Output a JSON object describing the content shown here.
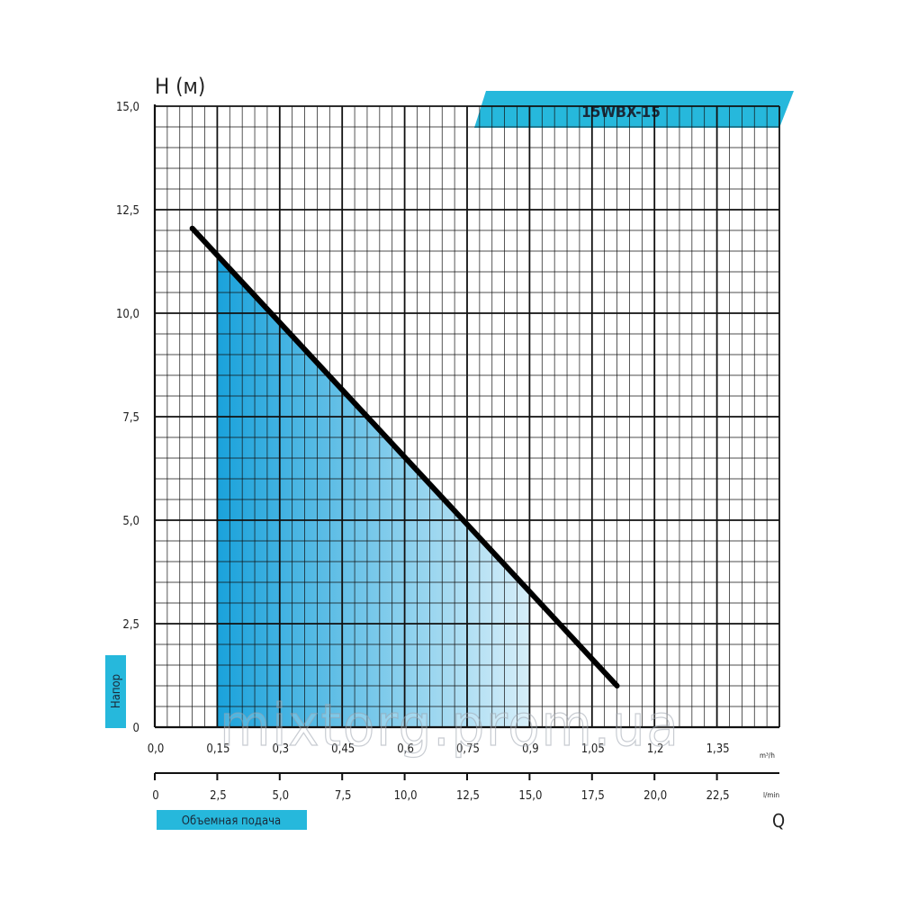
{
  "chart_data": {
    "type": "line",
    "title": "15WBX-15",
    "ylabel": "H (м)",
    "ylabel_tag": "Напор",
    "xlabel": "Q",
    "xlabel_tag": "Объемная подача",
    "x_unit_top": "m³/h",
    "x_unit_bottom": "l/min",
    "ylim": [
      0,
      15
    ],
    "xlim_lmin": [
      0,
      25
    ],
    "yticks": [
      "0",
      "2,5",
      "5,0",
      "7,5",
      "10,0",
      "12,5",
      "15,0"
    ],
    "xticks_top": [
      "0,0",
      "0,15",
      "0,3",
      "0,45",
      "0,6",
      "0,75",
      "0,9",
      "1,05",
      "1,2",
      "1,35"
    ],
    "xticks_bottom": [
      "0",
      "2,5",
      "5,0",
      "7,5",
      "10,0",
      "12,5",
      "15,0",
      "17,5",
      "20,0",
      "22,5"
    ],
    "grid": true,
    "series": [
      {
        "x": [
          1.5,
          18.5
        ],
        "y": [
          12.05,
          1.0
        ]
      }
    ],
    "working_range": {
      "x": [
        2.5,
        15.0
      ]
    },
    "colors": {
      "curve": "#000000",
      "accent": "#26b8dc",
      "fill_start": "#1aa2db",
      "fill_end": "#d6eef9",
      "grid": "#111111"
    }
  },
  "watermark": "mixtorg.prom.ua"
}
